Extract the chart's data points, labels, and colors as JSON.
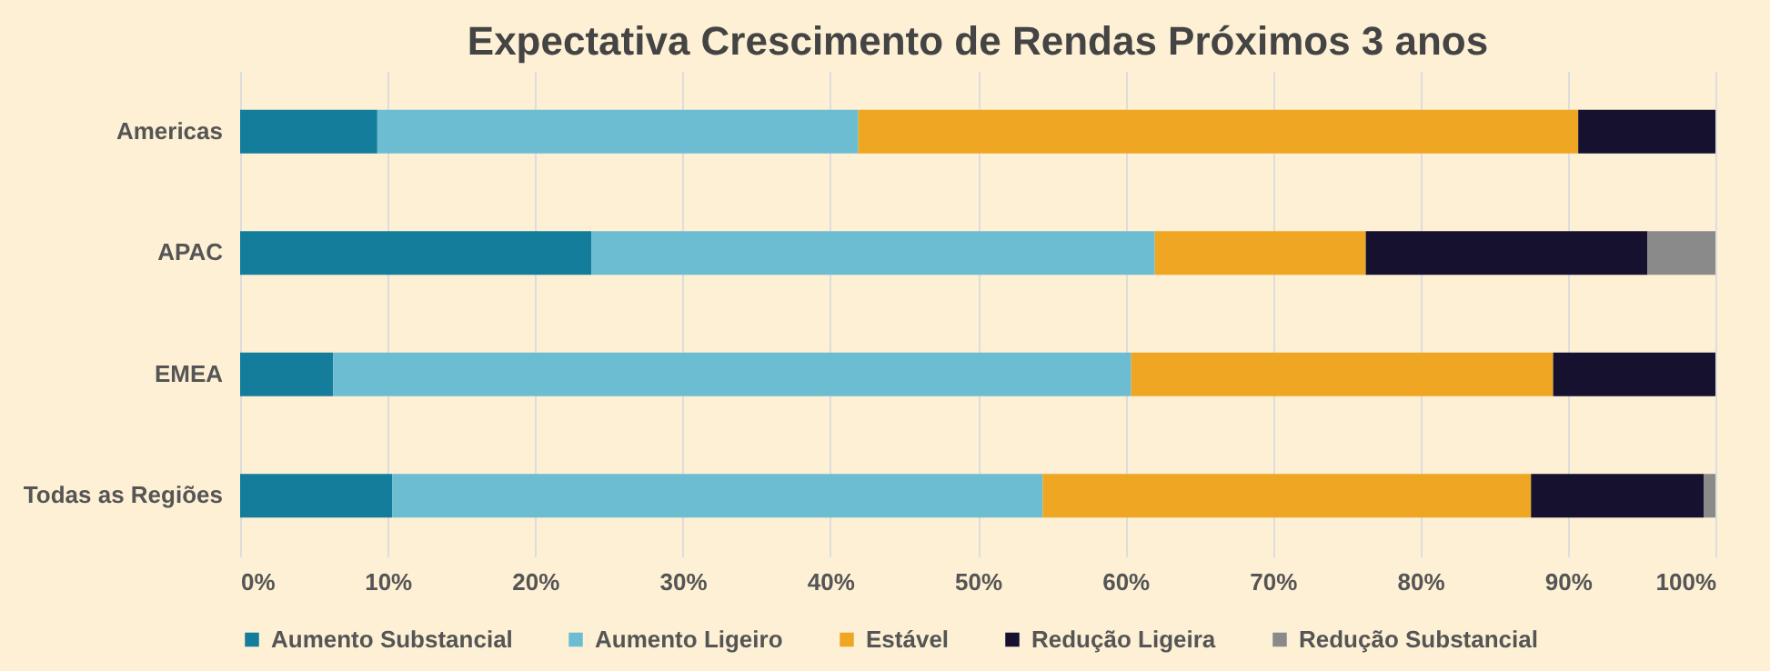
{
  "chart_data": {
    "type": "bar",
    "orientation": "horizontal",
    "stacked": true,
    "title": "Expectativa Crescimento de Rendas Próximos 3 anos",
    "categories": [
      "Americas",
      "APAC",
      "EMEA",
      "Todas as Regiões"
    ],
    "series": [
      {
        "name": "Aumento Substancial",
        "color": "#137d9b",
        "values": [
          9.3,
          23.8,
          6.3,
          10.3
        ]
      },
      {
        "name": "Aumento Ligeiro",
        "color": "#6dbdd2",
        "values": [
          32.6,
          38.2,
          54.1,
          44.1
        ]
      },
      {
        "name": "Estável",
        "color": "#eea623",
        "values": [
          48.8,
          14.3,
          28.6,
          33.1
        ]
      },
      {
        "name": "Redução Ligeira",
        "color": "#15112e",
        "values": [
          9.3,
          19.1,
          11.0,
          11.7
        ]
      },
      {
        "name": "Redução Substancial",
        "color": "#8a8a8a",
        "values": [
          null,
          4.6,
          null,
          0.8
        ]
      }
    ],
    "xlim": [
      0,
      100
    ],
    "xticks": [
      {
        "value": 0,
        "label": "0%"
      },
      {
        "value": 10,
        "label": "10%"
      },
      {
        "value": 20,
        "label": "20%"
      },
      {
        "value": 30,
        "label": "30%"
      },
      {
        "value": 40,
        "label": "40%"
      },
      {
        "value": 50,
        "label": "50%"
      },
      {
        "value": 60,
        "label": "60%"
      },
      {
        "value": 70,
        "label": "70%"
      },
      {
        "value": 80,
        "label": "80%"
      },
      {
        "value": 90,
        "label": "90%"
      },
      {
        "value": 100,
        "label": "100%"
      }
    ],
    "grid": "x",
    "legend": "bottom"
  }
}
